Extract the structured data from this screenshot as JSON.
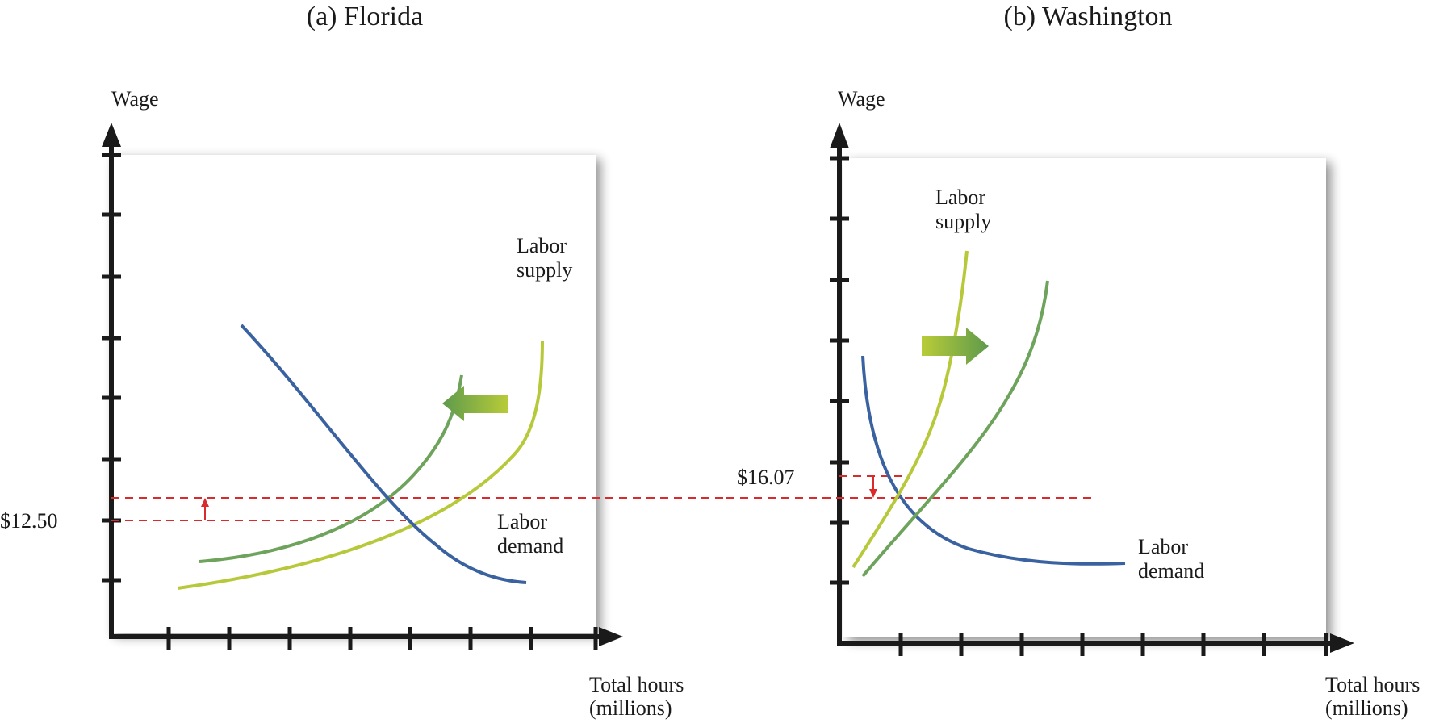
{
  "colors": {
    "demand": "#3a62a0",
    "supply_original": "#b7c93a",
    "supply_shifted": "#6ea35c",
    "wage_line": "#d92b2b",
    "axis": "#1a1a1a",
    "arrow_light": "#b9cc38",
    "arrow_dark": "#5e9a4c"
  },
  "panels": [
    {
      "title": "(a) Florida",
      "y_axis_label": "Wage",
      "x_axis_label_line1": "Total hours",
      "x_axis_label_line2": "(millions)",
      "supply_label_line1": "Labor",
      "supply_label_line2": "supply",
      "demand_label_line1": "Labor",
      "demand_label_line2": "demand",
      "price_label": "$12.50",
      "shift_direction": "left"
    },
    {
      "title": "(b) Washington",
      "y_axis_label": "Wage",
      "x_axis_label_line1": "Total hours",
      "x_axis_label_line2": "(millions)",
      "supply_label_line1": "Labor",
      "supply_label_line2": "supply",
      "demand_label_line1": "Labor",
      "demand_label_line2": "demand",
      "price_label": "$16.07",
      "shift_direction": "right"
    }
  ]
}
